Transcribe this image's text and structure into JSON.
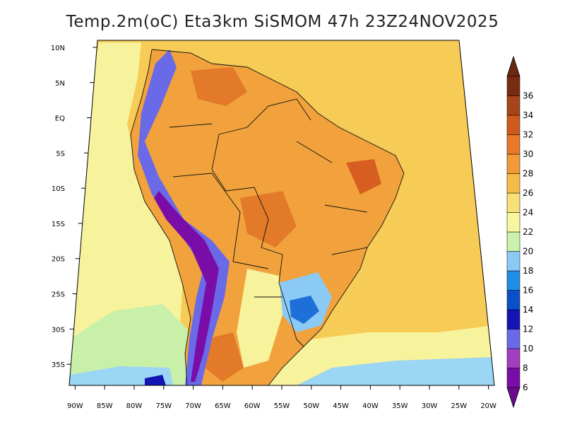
{
  "title": "Temp.2m(oC) Eta3km SiSMOM 47h 23Z24NOV2025",
  "map": {
    "lon_range": [
      -91,
      -19
    ],
    "lat_range": [
      -38,
      11
    ],
    "lat_ticks": [
      {
        "value": 10,
        "label": "10N"
      },
      {
        "value": 5,
        "label": "5N"
      },
      {
        "value": 0,
        "label": "EQ"
      },
      {
        "value": -5,
        "label": "5S"
      },
      {
        "value": -10,
        "label": "10S"
      },
      {
        "value": -15,
        "label": "15S"
      },
      {
        "value": -20,
        "label": "20S"
      },
      {
        "value": -25,
        "label": "25S"
      },
      {
        "value": -30,
        "label": "30S"
      },
      {
        "value": -35,
        "label": "35S"
      }
    ],
    "lon_ticks": [
      {
        "value": -90,
        "label": "90W"
      },
      {
        "value": -85,
        "label": "85W"
      },
      {
        "value": -80,
        "label": "80W"
      },
      {
        "value": -75,
        "label": "75W"
      },
      {
        "value": -70,
        "label": "70W"
      },
      {
        "value": -65,
        "label": "65W"
      },
      {
        "value": -60,
        "label": "60W"
      },
      {
        "value": -55,
        "label": "55W"
      },
      {
        "value": -50,
        "label": "50W"
      },
      {
        "value": -45,
        "label": "45W"
      },
      {
        "value": -40,
        "label": "40W"
      },
      {
        "value": -35,
        "label": "35W"
      },
      {
        "value": -30,
        "label": "30W"
      },
      {
        "value": -25,
        "label": "25W"
      },
      {
        "value": -20,
        "label": "20W"
      }
    ]
  },
  "colorbar": {
    "units": "oC",
    "labels": [
      "6",
      "8",
      "10",
      "12",
      "14",
      "16",
      "18",
      "20",
      "22",
      "24",
      "26",
      "28",
      "30",
      "32",
      "34",
      "36"
    ],
    "colors": [
      "#7a0da8",
      "#a23ec0",
      "#6a6ae8",
      "#1414b4",
      "#0a50c8",
      "#1f8ee6",
      "#8ccaf6",
      "#caf2aa",
      "#f6f7a0",
      "#f8e078",
      "#f6bc4a",
      "#f29a38",
      "#ea782a",
      "#d05a1e",
      "#a8441a",
      "#7a2c12"
    ],
    "low_arrow_color": "#6a0a8e",
    "high_arrow_color": "#6a2810"
  }
}
